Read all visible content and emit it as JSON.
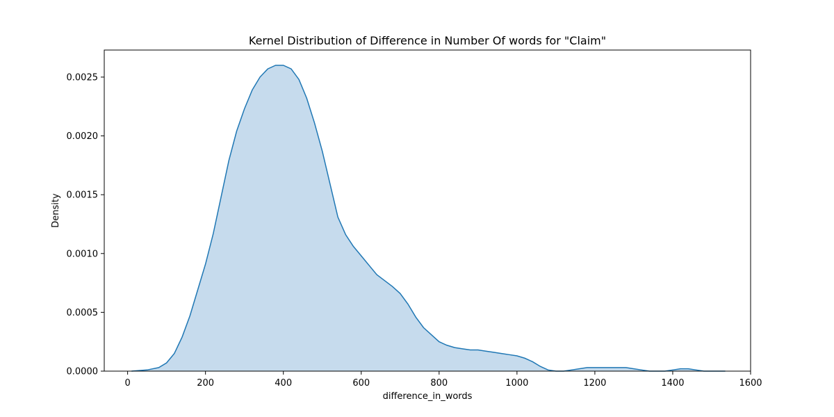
{
  "chart_data": {
    "type": "area",
    "title": "Kernel Distribution of Difference in Number Of words for \"Claim\"",
    "xlabel": "difference_in_words",
    "ylabel": "Density",
    "xlim": [
      -60,
      1600
    ],
    "ylim": [
      0,
      0.00273
    ],
    "x_ticks": [
      0,
      200,
      400,
      600,
      800,
      1000,
      1200,
      1400,
      1600
    ],
    "y_ticks": [
      0.0,
      0.0005,
      0.001,
      0.0015,
      0.002,
      0.0025
    ],
    "y_tick_labels": [
      "0.0000",
      "0.0005",
      "0.0010",
      "0.0015",
      "0.0020",
      "0.0025"
    ],
    "grid": false,
    "line_color": "#1f77b4",
    "fill_color": "#c6dbed",
    "series": [
      {
        "x": [
          10,
          50,
          80,
          100,
          120,
          140,
          160,
          180,
          200,
          220,
          240,
          260,
          280,
          300,
          320,
          340,
          360,
          380,
          400,
          420,
          440,
          460,
          480,
          500,
          520,
          540,
          560,
          580,
          600,
          620,
          640,
          660,
          680,
          700,
          720,
          740,
          760,
          780,
          800,
          820,
          840,
          860,
          880,
          900,
          920,
          940,
          960,
          980,
          1000,
          1020,
          1040,
          1060,
          1080,
          1100,
          1120,
          1140,
          1160,
          1180,
          1200,
          1220,
          1240,
          1260,
          1280,
          1300,
          1320,
          1340,
          1360,
          1380,
          1400,
          1420,
          1440,
          1460,
          1480,
          1500,
          1520,
          1535
        ],
        "y": [
          0.0,
          1e-05,
          3e-05,
          7e-05,
          0.00015,
          0.00029,
          0.00047,
          0.00069,
          0.00091,
          0.00117,
          0.00148,
          0.00179,
          0.00204,
          0.00223,
          0.00239,
          0.0025,
          0.00257,
          0.0026,
          0.0026,
          0.00257,
          0.00248,
          0.00232,
          0.00211,
          0.00187,
          0.00159,
          0.00131,
          0.00116,
          0.00106,
          0.00098,
          0.0009,
          0.00082,
          0.00077,
          0.00072,
          0.00066,
          0.00057,
          0.00046,
          0.00037,
          0.00031,
          0.00025,
          0.00022,
          0.0002,
          0.00019,
          0.00018,
          0.00018,
          0.00017,
          0.00016,
          0.00015,
          0.00014,
          0.00013,
          0.00011,
          8e-05,
          4e-05,
          1e-05,
          0.0,
          0.0,
          1e-05,
          2e-05,
          3e-05,
          3e-05,
          3e-05,
          3e-05,
          3e-05,
          3e-05,
          2e-05,
          1e-05,
          0.0,
          0.0,
          0.0,
          1e-05,
          2e-05,
          2e-05,
          1e-05,
          0.0,
          0.0,
          0.0,
          0.0
        ]
      }
    ]
  }
}
